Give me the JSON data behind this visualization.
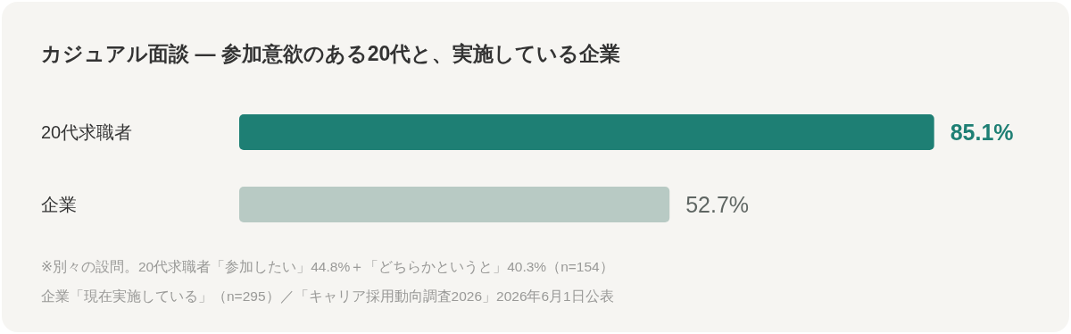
{
  "chart_data": {
    "type": "bar",
    "orientation": "horizontal",
    "title": "カジュアル面談 — 参加意欲のある20代と、実施している企業",
    "categories": [
      "20代求職者",
      "企業"
    ],
    "values": [
      85.1,
      52.7
    ],
    "colors": [
      "#1e7f74",
      "#b8cac4"
    ],
    "value_labels": [
      "85.1%",
      "52.7%"
    ],
    "annotations": [
      "※別々の設問。20代求職者「参加したい」44.8%＋「どちらかというと」40.3%（n=154）",
      "企業「現在実施している」（n=295）／「キャリア採用動向調査2026」2026年6月1日公表"
    ]
  }
}
